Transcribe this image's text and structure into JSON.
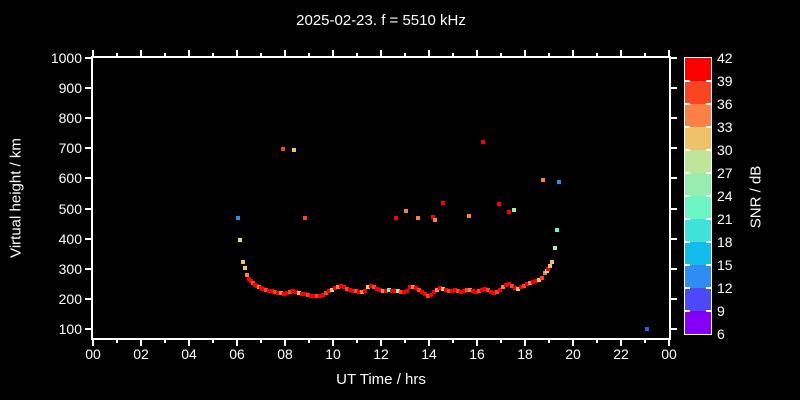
{
  "title": "2025-02-23. f = 5510 kHz",
  "chart_data": {
    "type": "scatter",
    "title": "2025-02-23. f = 5510 kHz",
    "xlabel": "UT Time / hrs",
    "ylabel": "Virtual height / km",
    "colorbar_label": "SNR / dB",
    "xlim": [
      0,
      24
    ],
    "ylim": [
      70,
      1000
    ],
    "x_major_tick_hours": [
      0,
      2,
      4,
      6,
      8,
      10,
      12,
      14,
      16,
      18,
      20,
      22,
      24
    ],
    "x_tick_labels": [
      "00",
      "02",
      "04",
      "06",
      "08",
      "10",
      "12",
      "14",
      "16",
      "18",
      "20",
      "22",
      "00"
    ],
    "x_minor_tick_hours": [
      1,
      3,
      5,
      7,
      9,
      11,
      13,
      15,
      17,
      19,
      21,
      23
    ],
    "y_ticks": [
      100,
      200,
      300,
      400,
      500,
      600,
      700,
      800,
      900,
      1000
    ],
    "grid": false,
    "background": "#000000",
    "frame_color": "#ffffff",
    "colorbar": {
      "min": 6,
      "max": 42,
      "step": 3,
      "tick_labels": [
        "42",
        "39",
        "36",
        "33",
        "30",
        "27",
        "24",
        "21",
        "18",
        "15",
        "12",
        "9",
        "6"
      ],
      "segment_colors_low_to_high": [
        "#8500f5",
        "#4d49f8",
        "#2e8cf2",
        "#14bcec",
        "#3fe2d9",
        "#6cf6c3",
        "#97edae",
        "#bfe59b",
        "#efc168",
        "#fa8045",
        "#fa4522",
        "#fa0000"
      ]
    },
    "points_format": [
      "ut_hour",
      "virtual_height_km",
      "snr_db"
    ],
    "points": [
      [
        6.04,
        469,
        13
      ],
      [
        6.13,
        395,
        28
      ],
      [
        6.25,
        323,
        31
      ],
      [
        6.33,
        301,
        31
      ],
      [
        6.42,
        278,
        34
      ],
      [
        6.5,
        266,
        40
      ],
      [
        6.58,
        258,
        40
      ],
      [
        6.67,
        252,
        37
      ],
      [
        6.75,
        247,
        40
      ],
      [
        6.83,
        243,
        40
      ],
      [
        6.92,
        240,
        34
      ],
      [
        7.0,
        237,
        40
      ],
      [
        7.1,
        234,
        40
      ],
      [
        7.2,
        230,
        37
      ],
      [
        7.33,
        227,
        40
      ],
      [
        7.46,
        225,
        40
      ],
      [
        7.58,
        222,
        37
      ],
      [
        7.71,
        220,
        40
      ],
      [
        7.83,
        218,
        34
      ],
      [
        7.96,
        217,
        40
      ],
      [
        8.08,
        219,
        40
      ],
      [
        8.21,
        222,
        37
      ],
      [
        8.33,
        225,
        40
      ],
      [
        8.46,
        222,
        40
      ],
      [
        8.58,
        219,
        31
      ],
      [
        8.71,
        217,
        40
      ],
      [
        8.83,
        215,
        40
      ],
      [
        8.96,
        213,
        37
      ],
      [
        9.08,
        211,
        40
      ],
      [
        9.21,
        209,
        40
      ],
      [
        9.33,
        208,
        37
      ],
      [
        9.46,
        210,
        40
      ],
      [
        9.58,
        214,
        40
      ],
      [
        9.71,
        220,
        37
      ],
      [
        9.83,
        226,
        40
      ],
      [
        9.96,
        231,
        31
      ],
      [
        10.08,
        236,
        40
      ],
      [
        10.21,
        241,
        34
      ],
      [
        10.33,
        243,
        40
      ],
      [
        10.46,
        239,
        40
      ],
      [
        10.58,
        234,
        37
      ],
      [
        10.71,
        230,
        40
      ],
      [
        10.83,
        227,
        40
      ],
      [
        10.96,
        225,
        37
      ],
      [
        11.08,
        223,
        40
      ],
      [
        11.21,
        222,
        34
      ],
      [
        11.33,
        226,
        40
      ],
      [
        11.46,
        238,
        31
      ],
      [
        11.58,
        243,
        40
      ],
      [
        11.71,
        240,
        37
      ],
      [
        11.83,
        234,
        40
      ],
      [
        11.96,
        229,
        40
      ],
      [
        12.08,
        227,
        34
      ],
      [
        12.21,
        226,
        40
      ],
      [
        12.33,
        228,
        22
      ],
      [
        12.46,
        227,
        40
      ],
      [
        12.58,
        226,
        40
      ],
      [
        12.71,
        225,
        25
      ],
      [
        12.83,
        224,
        37
      ],
      [
        12.96,
        222,
        40
      ],
      [
        13.08,
        227,
        40
      ],
      [
        13.21,
        238,
        40
      ],
      [
        13.33,
        241,
        34
      ],
      [
        13.46,
        236,
        40
      ],
      [
        13.58,
        230,
        37
      ],
      [
        13.71,
        222,
        40
      ],
      [
        13.83,
        215,
        40
      ],
      [
        13.96,
        210,
        37
      ],
      [
        14.08,
        212,
        40
      ],
      [
        14.21,
        222,
        40
      ],
      [
        14.33,
        231,
        34
      ],
      [
        14.46,
        235,
        40
      ],
      [
        14.58,
        232,
        31
      ],
      [
        14.71,
        228,
        40
      ],
      [
        14.83,
        225,
        37
      ],
      [
        14.96,
        227,
        40
      ],
      [
        15.08,
        230,
        40
      ],
      [
        15.21,
        227,
        37
      ],
      [
        15.33,
        224,
        40
      ],
      [
        15.46,
        227,
        40
      ],
      [
        15.58,
        231,
        37
      ],
      [
        15.71,
        229,
        34
      ],
      [
        15.83,
        226,
        40
      ],
      [
        15.96,
        224,
        40
      ],
      [
        16.08,
        226,
        37
      ],
      [
        16.21,
        229,
        40
      ],
      [
        16.33,
        232,
        40
      ],
      [
        16.46,
        228,
        37
      ],
      [
        16.58,
        223,
        40
      ],
      [
        16.71,
        219,
        40
      ],
      [
        16.83,
        222,
        37
      ],
      [
        16.96,
        229,
        40
      ],
      [
        17.08,
        240,
        34
      ],
      [
        17.21,
        246,
        40
      ],
      [
        17.33,
        248,
        40
      ],
      [
        17.46,
        242,
        37
      ],
      [
        17.58,
        237,
        40
      ],
      [
        17.71,
        234,
        31
      ],
      [
        17.83,
        239,
        40
      ],
      [
        17.96,
        244,
        37
      ],
      [
        18.08,
        248,
        40
      ],
      [
        18.21,
        252,
        34
      ],
      [
        18.33,
        256,
        40
      ],
      [
        18.46,
        260,
        40
      ],
      [
        18.58,
        264,
        31
      ],
      [
        18.71,
        270,
        37
      ],
      [
        18.83,
        285,
        34
      ],
      [
        18.9,
        292,
        25
      ],
      [
        18.96,
        298,
        40
      ],
      [
        19.04,
        310,
        31
      ],
      [
        19.13,
        322,
        31
      ],
      [
        19.25,
        369,
        28
      ],
      [
        19.33,
        429,
        22
      ],
      [
        19.42,
        588,
        13
      ],
      [
        18.75,
        595,
        34
      ],
      [
        7.92,
        698,
        37
      ],
      [
        8.38,
        694,
        31
      ],
      [
        8.83,
        469,
        37
      ],
      [
        12.63,
        469,
        40
      ],
      [
        13.04,
        492,
        34
      ],
      [
        13.54,
        469,
        34
      ],
      [
        14.15,
        472,
        40
      ],
      [
        14.25,
        462,
        34
      ],
      [
        14.6,
        518,
        40
      ],
      [
        15.65,
        475,
        34
      ],
      [
        16.25,
        721,
        41
      ],
      [
        16.9,
        515,
        40
      ],
      [
        17.35,
        489,
        40
      ],
      [
        17.55,
        495,
        25
      ],
      [
        23.1,
        100,
        10
      ]
    ]
  }
}
